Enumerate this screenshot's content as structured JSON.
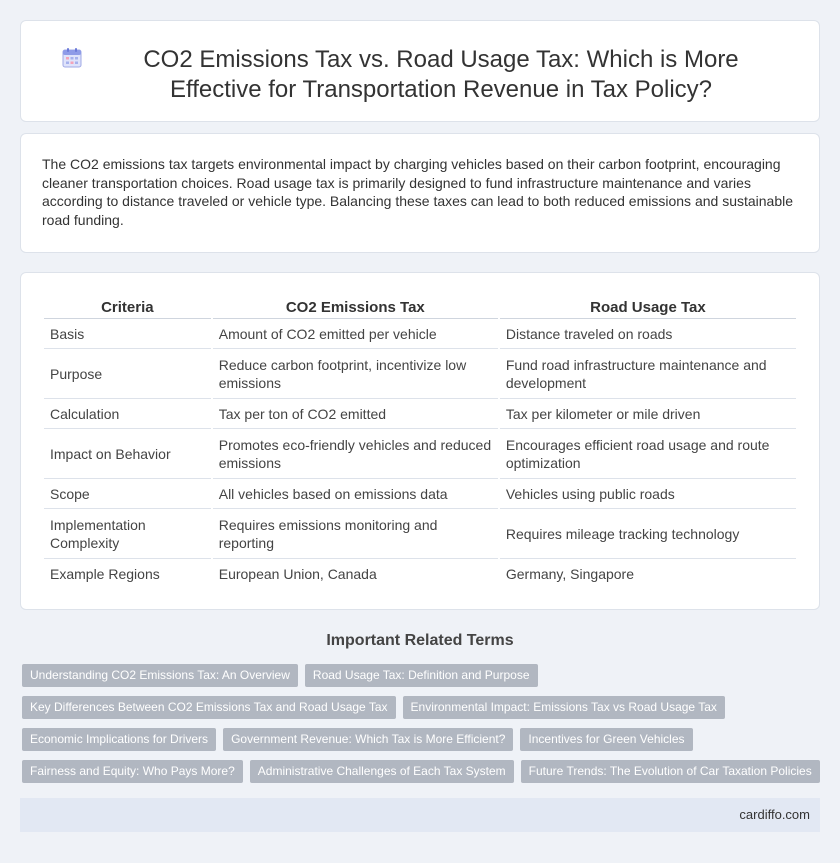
{
  "header": {
    "icon": "calendar-icon",
    "title": "CO2 Emissions Tax vs. Road Usage Tax: Which is More Effective for Transportation Revenue in Tax Policy?"
  },
  "summary": "The CO2 emissions tax targets environmental impact by charging vehicles based on their carbon footprint, encouraging cleaner transportation choices. Road usage tax is primarily designed to fund infrastructure maintenance and varies according to distance traveled or vehicle type. Balancing these taxes can lead to both reduced emissions and sustainable road funding.",
  "table": {
    "headers": [
      "Criteria",
      "CO2 Emissions Tax",
      "Road Usage Tax"
    ],
    "rows": [
      [
        "Basis",
        "Amount of CO2 emitted per vehicle",
        "Distance traveled on roads"
      ],
      [
        "Purpose",
        "Reduce carbon footprint, incentivize low emissions",
        "Fund road infrastructure maintenance and development"
      ],
      [
        "Calculation",
        "Tax per ton of CO2 emitted",
        "Tax per kilometer or mile driven"
      ],
      [
        "Impact on Behavior",
        "Promotes eco-friendly vehicles and reduced emissions",
        "Encourages efficient road usage and route optimization"
      ],
      [
        "Scope",
        "All vehicles based on emissions data",
        "Vehicles using public roads"
      ],
      [
        "Implementation Complexity",
        "Requires emissions monitoring and reporting",
        "Requires mileage tracking technology"
      ],
      [
        "Example Regions",
        "European Union, Canada",
        "Germany, Singapore"
      ]
    ]
  },
  "related": {
    "title": "Important Related Terms",
    "tags": [
      "Understanding CO2 Emissions Tax: An Overview",
      "Road Usage Tax: Definition and Purpose",
      "Key Differences Between CO2 Emissions Tax and Road Usage Tax",
      "Environmental Impact: Emissions Tax vs Road Usage Tax",
      "Economic Implications for Drivers",
      "Government Revenue: Which Tax is More Efficient?",
      "Incentives for Green Vehicles",
      "Fairness and Equity: Who Pays More?",
      "Administrative Challenges of Each Tax System",
      "Future Trends: The Evolution of Car Taxation Policies"
    ]
  },
  "footer": {
    "site": "cardiffo.com"
  }
}
